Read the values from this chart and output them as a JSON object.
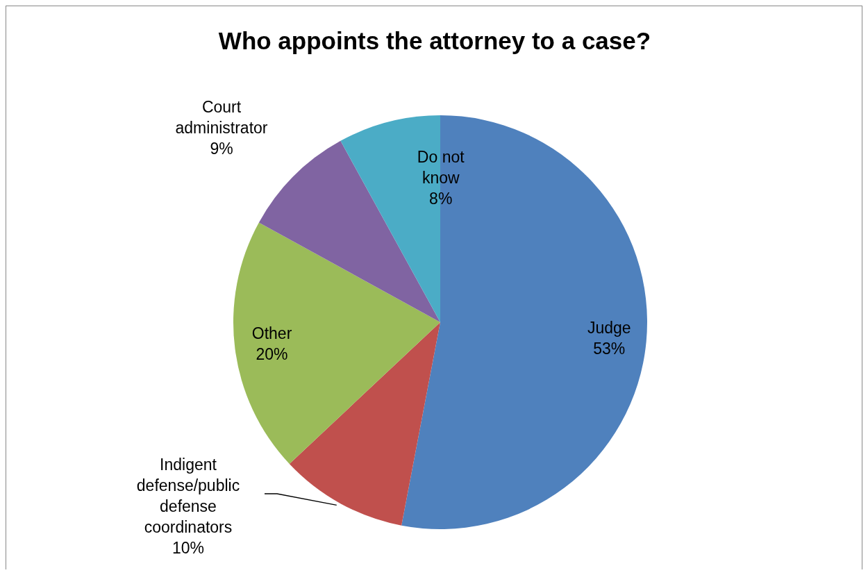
{
  "chart_data": {
    "type": "pie",
    "title": "Who appoints the attorney to a case?",
    "categories": [
      "Judge",
      "Indigent defense/public defense coordinators",
      "Other",
      "Court administrator",
      "Do not know"
    ],
    "values": [
      53,
      10,
      20,
      9,
      8
    ],
    "value_labels": [
      "53%",
      "10%",
      "20%",
      "9%",
      "8%"
    ],
    "colors": [
      "#4f81bd",
      "#c0504d",
      "#9bbb59",
      "#8064a2",
      "#4bacc6"
    ]
  }
}
